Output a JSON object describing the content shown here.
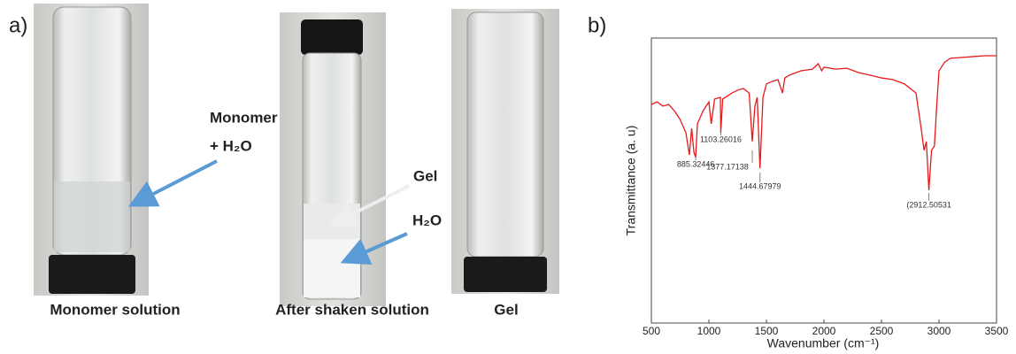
{
  "panel_a": {
    "label": "a)",
    "captions": [
      "Monomer solution",
      "After shaken solution",
      "Gel"
    ],
    "annotations": [
      "Monomer",
      "+ H₂O",
      "Gel",
      "H₂O"
    ]
  },
  "chart_data": {
    "type": "line",
    "label": "b)",
    "x_label": "Wavenumber (cm⁻¹)",
    "y_label": "Transmittance (a. u)",
    "xlim": [
      500,
      3500
    ],
    "xticks": [
      500,
      1000,
      1500,
      2000,
      2500,
      3000,
      3500
    ],
    "ylim": [
      0,
      100
    ],
    "series": [
      {
        "color": "#e41a1c",
        "x": [
          500,
          550,
          600,
          650,
          700,
          750,
          800,
          830,
          850,
          870,
          885,
          900,
          950,
          1000,
          1020,
          1050,
          1100,
          1103,
          1120,
          1200,
          1250,
          1300,
          1350,
          1377,
          1400,
          1420,
          1444,
          1470,
          1500,
          1550,
          1600,
          1640,
          1660,
          1700,
          1800,
          1900,
          1950,
          1980,
          2000,
          2100,
          2200,
          2300,
          2400,
          2500,
          2600,
          2700,
          2800,
          2850,
          2870,
          2890,
          2912,
          2935,
          2960,
          2980,
          3000,
          3050,
          3100,
          3200,
          3300,
          3400,
          3500
        ],
        "values": [
          76.7,
          77.6,
          76.1,
          76.7,
          74.5,
          71.4,
          66.8,
          59.0,
          68.3,
          59.9,
          58.1,
          69.9,
          74.5,
          77.6,
          69.9,
          78.6,
          79.2,
          66.8,
          78.6,
          80.7,
          81.7,
          82.3,
          80.7,
          63.7,
          76.1,
          79.2,
          54.3,
          79.2,
          83.9,
          84.8,
          85.4,
          80.7,
          86.0,
          87.0,
          88.5,
          89.1,
          91.0,
          88.5,
          89.8,
          89.1,
          89.4,
          87.9,
          87.0,
          86.0,
          85.4,
          83.9,
          80.7,
          66.8,
          60.6,
          63.7,
          46.6,
          60.6,
          62.1,
          76.1,
          88.5,
          91.6,
          92.9,
          93.2,
          93.5,
          93.8,
          93.8
        ]
      }
    ],
    "peak_labels": [
      {
        "value": 885.32446,
        "label": "885.32446"
      },
      {
        "value": 1103.26016,
        "label": "1103.26016"
      },
      {
        "value": 1377.17138,
        "label": "1377.17138"
      },
      {
        "value": 1444.67979,
        "label": "1444.67979"
      },
      {
        "value": 2912.50531,
        "label": "(2912.50531"
      }
    ]
  }
}
